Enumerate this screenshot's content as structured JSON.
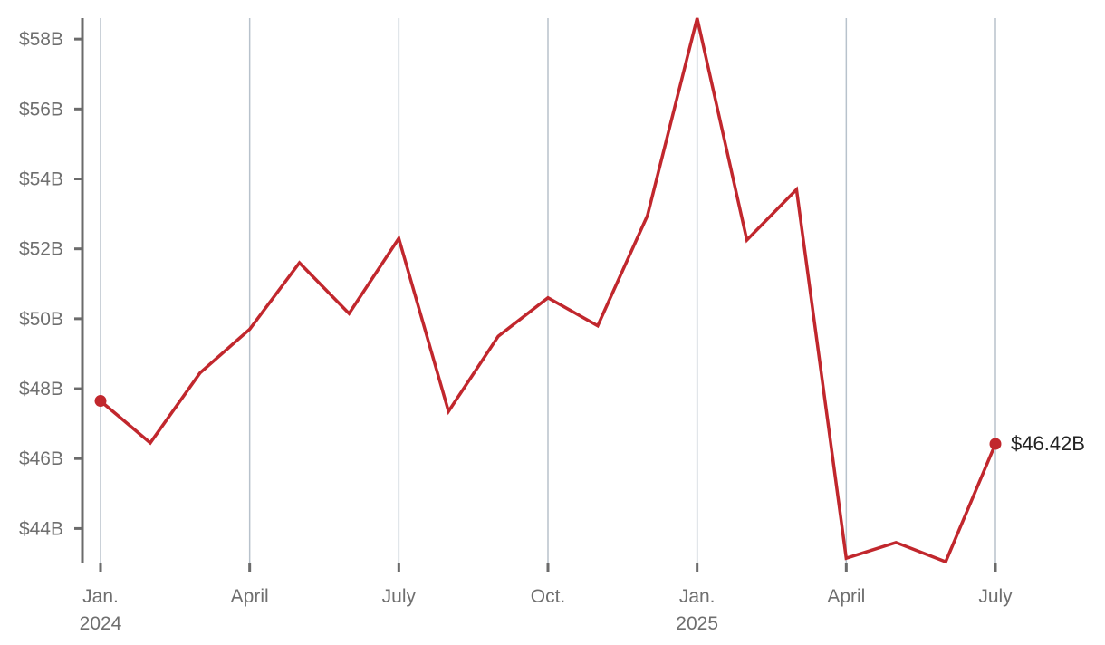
{
  "chart_data": {
    "type": "line",
    "title": "",
    "xlabel": "",
    "ylabel": "",
    "ylim": [
      43.0,
      58.6
    ],
    "xlim": [
      "2024-01",
      "2025-07"
    ],
    "grid": "vertical",
    "colors": {
      "line": "#c1272d",
      "grid": "#b8c2cc",
      "axis": "#6b6b6b",
      "tick_text": "#6f6f6f",
      "end_label_text": "#222222"
    },
    "y_ticks": [
      {
        "value": 44,
        "label": "$44B"
      },
      {
        "value": 46,
        "label": "$46B"
      },
      {
        "value": 48,
        "label": "$48B"
      },
      {
        "value": 50,
        "label": "$50B"
      },
      {
        "value": 52,
        "label": "$52B"
      },
      {
        "value": 54,
        "label": "$54B"
      },
      {
        "value": 56,
        "label": "$56B"
      },
      {
        "value": 58,
        "label": "$58B"
      }
    ],
    "x_ticks": [
      {
        "date": "2024-01",
        "label": "Jan.",
        "sublabel": "2024"
      },
      {
        "date": "2024-04",
        "label": "April",
        "sublabel": ""
      },
      {
        "date": "2024-07",
        "label": "July",
        "sublabel": ""
      },
      {
        "date": "2024-10",
        "label": "Oct.",
        "sublabel": ""
      },
      {
        "date": "2025-01",
        "label": "Jan.",
        "sublabel": "2025"
      },
      {
        "date": "2025-04",
        "label": "April",
        "sublabel": ""
      },
      {
        "date": "2025-07",
        "label": "July",
        "sublabel": ""
      }
    ],
    "series": [
      {
        "points": [
          {
            "x": "2024-01",
            "y": 47.65
          },
          {
            "x": "2024-02",
            "y": 46.45
          },
          {
            "x": "2024-03",
            "y": 48.45
          },
          {
            "x": "2024-04",
            "y": 49.7
          },
          {
            "x": "2024-05",
            "y": 51.6
          },
          {
            "x": "2024-06",
            "y": 50.15
          },
          {
            "x": "2024-07",
            "y": 52.3
          },
          {
            "x": "2024-08",
            "y": 47.35
          },
          {
            "x": "2024-09",
            "y": 49.5
          },
          {
            "x": "2024-10",
            "y": 50.6
          },
          {
            "x": "2024-11",
            "y": 49.8
          },
          {
            "x": "2024-12",
            "y": 52.95
          },
          {
            "x": "2025-01",
            "y": 58.6
          },
          {
            "x": "2025-02",
            "y": 52.25
          },
          {
            "x": "2025-03",
            "y": 53.7
          },
          {
            "x": "2025-04",
            "y": 43.15
          },
          {
            "x": "2025-05",
            "y": 43.6
          },
          {
            "x": "2025-06",
            "y": 43.05
          },
          {
            "x": "2025-07",
            "y": 46.42
          }
        ]
      }
    ],
    "end_label": "$46.42B",
    "markers": [
      "first",
      "last"
    ]
  }
}
